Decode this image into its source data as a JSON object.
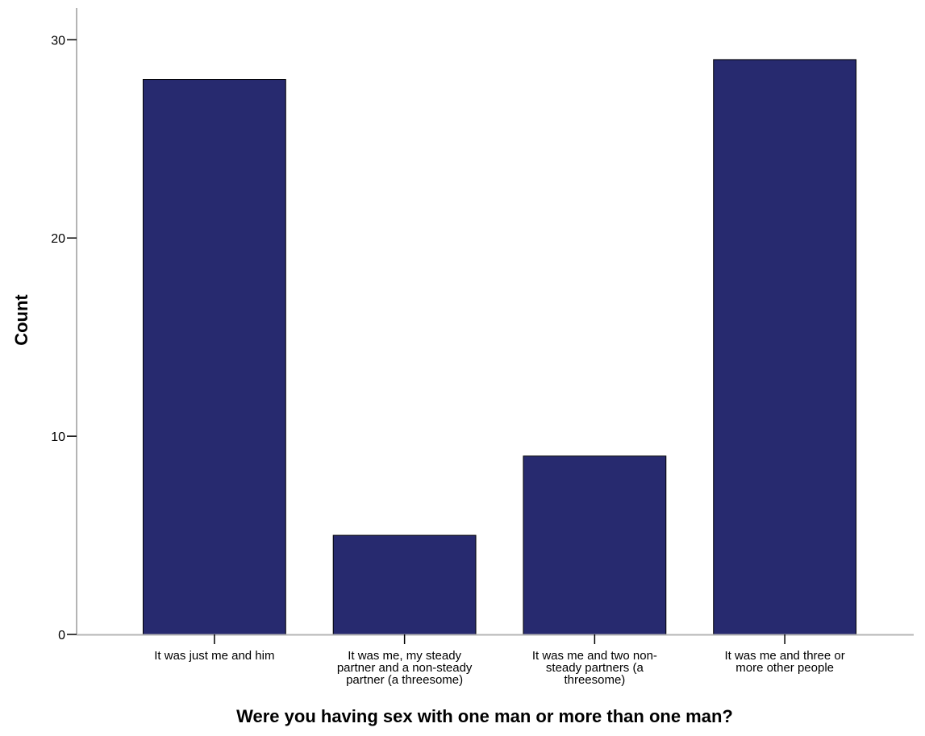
{
  "chart_data": {
    "type": "bar",
    "title": "",
    "xlabel": "Were you having sex with one man or more than one man?",
    "ylabel": "Count",
    "categories": [
      [
        "It was just me and him"
      ],
      [
        "It was me, my steady",
        "partner and a non-steady",
        "partner (a threesome)"
      ],
      [
        "It was me and two non-",
        "steady partners (a",
        "threesome)"
      ],
      [
        "It was me and three or",
        "more other people"
      ]
    ],
    "values": [
      28,
      5,
      9,
      29
    ],
    "ylim": [
      0,
      31.6
    ],
    "yticks": [
      0,
      10,
      20,
      30
    ],
    "grid": false,
    "bar_color": "#272a6f",
    "bar_edge_color": "#000000",
    "axis_color": "#b4b4b4"
  }
}
